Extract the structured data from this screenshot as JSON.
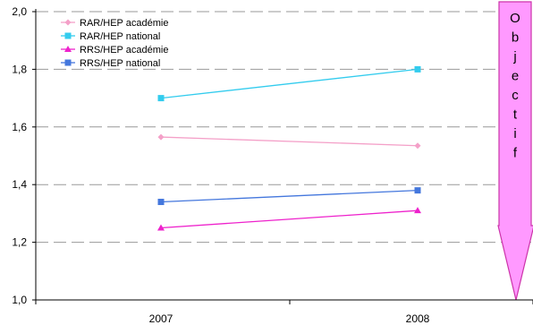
{
  "chart_data": {
    "type": "line",
    "categories": [
      "2007",
      "2008"
    ],
    "ylim": [
      1.0,
      2.0
    ],
    "yticks": [
      "1,0",
      "1,2",
      "1,4",
      "1,6",
      "1,8",
      "2,0"
    ],
    "grid": true,
    "legend_position": "top-left",
    "series": [
      {
        "name": "RAR/HEP académie",
        "values": [
          1.565,
          1.535
        ],
        "color": "#f4a0c8",
        "marker": "diamond"
      },
      {
        "name": "RAR/HEP national",
        "values": [
          1.7,
          1.8
        ],
        "color": "#33ccee",
        "marker": "square"
      },
      {
        "name": "RRS/HEP académie",
        "values": [
          1.25,
          1.31
        ],
        "color": "#ee22cc",
        "marker": "triangle"
      },
      {
        "name": "RRS/HEP national",
        "values": [
          1.34,
          1.38
        ],
        "color": "#4477dd",
        "marker": "square"
      }
    ],
    "annotation": {
      "text": "Objectif",
      "fill": "#ff99ff",
      "stroke": "#cc33aa"
    }
  }
}
